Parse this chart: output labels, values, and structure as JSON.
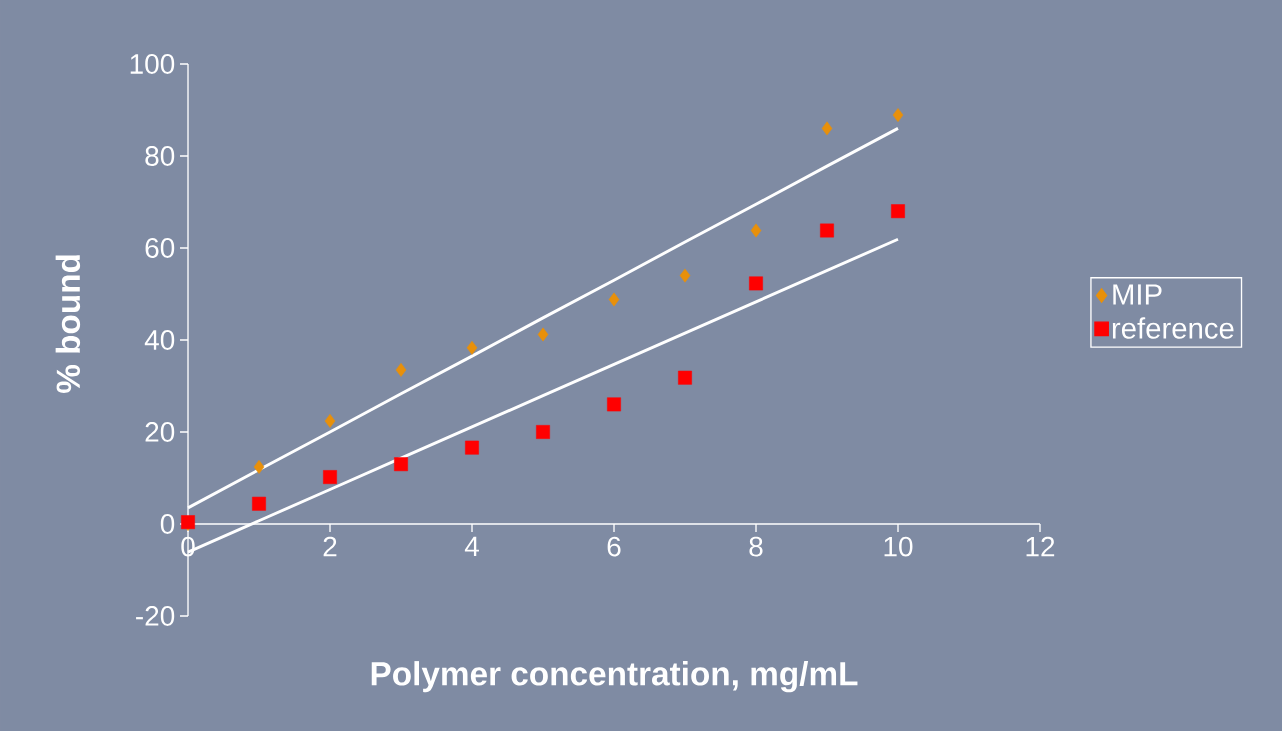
{
  "chart_data": {
    "type": "scatter",
    "xlabel": "Polymer concentration, mg/mL",
    "ylabel": "% bound",
    "x": [
      0,
      1,
      2,
      3,
      4,
      5,
      6,
      7,
      8,
      9,
      10
    ],
    "series": [
      {
        "name": "MIP",
        "color": "#e8900a",
        "marker": "diamond",
        "values": [
          0,
          12.4,
          22.4,
          33.5,
          38.3,
          41.2,
          48.8,
          54,
          63.8,
          86,
          88.9
        ]
      },
      {
        "name": "reference",
        "color": "#ff0000",
        "marker": "square",
        "values": [
          0.4,
          4.4,
          10.2,
          13,
          16.6,
          20,
          26,
          31.8,
          52.3,
          63.8,
          68
        ]
      },
      {
        "type": "line",
        "color": "#ffffff",
        "marker": "none",
        "values": [
          3.5,
          11.8,
          20,
          28.3,
          36.5,
          44.8,
          53,
          61.3,
          69.5,
          77.8,
          86
        ]
      },
      {
        "type": "line",
        "color": "#ffffff",
        "marker": "none",
        "values": [
          -6.1,
          0.7,
          7.5,
          14.3,
          21.1,
          27.9,
          34.7,
          41.5,
          48.3,
          55.1,
          61.9
        ]
      }
    ],
    "xlim": [
      0,
      12
    ],
    "ylim": [
      -20,
      100
    ],
    "xticks": [
      0,
      2,
      4,
      6,
      8,
      10,
      12
    ],
    "yticks": [
      -20,
      0,
      20,
      40,
      60,
      80,
      100
    ],
    "legend": "right",
    "grid": false
  }
}
